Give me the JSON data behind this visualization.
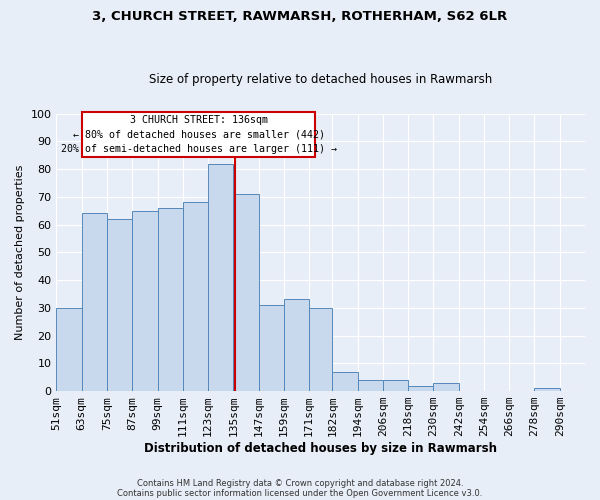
{
  "title": "3, CHURCH STREET, RAWMARSH, ROTHERHAM, S62 6LR",
  "subtitle": "Size of property relative to detached houses in Rawmarsh",
  "xlabel": "Distribution of detached houses by size in Rawmarsh",
  "ylabel": "Number of detached properties",
  "bar_color": "#c9d9ed",
  "bar_edge_color": "#5588bb",
  "background_color": "#e8eef7",
  "grid_color": "#ffffff",
  "categories": [
    "51sqm",
    "63sqm",
    "75sqm",
    "87sqm",
    "99sqm",
    "111sqm",
    "123sqm",
    "135sqm",
    "147sqm",
    "159sqm",
    "171sqm",
    "182sqm",
    "194sqm",
    "206sqm",
    "218sqm",
    "230sqm",
    "242sqm",
    "254sqm",
    "266sqm",
    "278sqm",
    "290sqm"
  ],
  "values": [
    30,
    64,
    62,
    65,
    66,
    68,
    82,
    71,
    31,
    33,
    30,
    7,
    4,
    4,
    2,
    3,
    0,
    0,
    0,
    1,
    0
  ],
  "bin_edges": [
    51,
    63,
    75,
    87,
    99,
    111,
    123,
    135,
    147,
    159,
    171,
    182,
    194,
    206,
    218,
    230,
    242,
    254,
    266,
    278,
    290,
    302
  ],
  "vline_x": 136,
  "vline_color": "#cc0000",
  "ylim": [
    0,
    100
  ],
  "ann_line1": "3 CHURCH STREET: 136sqm",
  "ann_line2": "← 80% of detached houses are smaller (442)",
  "ann_line3": "20% of semi-detached houses are larger (111) →",
  "footnote1": "Contains HM Land Registry data © Crown copyright and database right 2024.",
  "footnote2": "Contains public sector information licensed under the Open Government Licence v3.0."
}
